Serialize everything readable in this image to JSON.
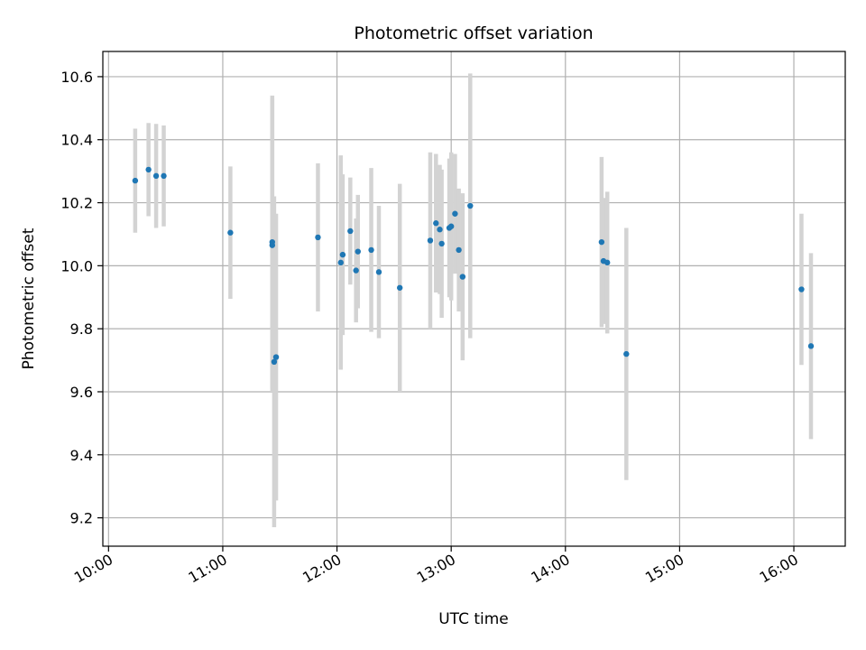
{
  "chart_data": {
    "type": "scatter",
    "title": "Photometric offset variation",
    "xlabel": "UTC time",
    "ylabel": "Photometric offset",
    "x_ticks": [
      "10:00",
      "11:00",
      "12:00",
      "13:00",
      "14:00",
      "15:00",
      "16:00"
    ],
    "y_ticks": [
      "9.2",
      "9.4",
      "9.6",
      "9.8",
      "10.0",
      "10.2",
      "10.4",
      "10.6"
    ],
    "xlim": [
      "09:57",
      "16:27"
    ],
    "ylim": [
      9.11,
      10.68
    ],
    "grid": true,
    "point_color": "#1f77b4",
    "errorbar_color": "#d3d3d3",
    "points": [
      {
        "x": "10:14",
        "y": 10.27,
        "yerr": 0.165
      },
      {
        "x": "10:21",
        "y": 10.305,
        "yerr": 0.148
      },
      {
        "x": "10:25",
        "y": 10.285,
        "yerr": 0.165
      },
      {
        "x": "10:29",
        "y": 10.285,
        "yerr": 0.16
      },
      {
        "x": "11:04",
        "y": 10.105,
        "yerr": 0.21
      },
      {
        "x": "11:26",
        "y": 10.075,
        "yerr": 0.465
      },
      {
        "x": "11:26",
        "y": 10.065,
        "yerr": 0.465
      },
      {
        "x": "11:27",
        "y": 9.695,
        "yerr": 0.525
      },
      {
        "x": "11:28",
        "y": 9.71,
        "yerr": 0.455
      },
      {
        "x": "11:50",
        "y": 10.09,
        "yerr": 0.235
      },
      {
        "x": "12:02",
        "y": 10.01,
        "yerr": 0.34
      },
      {
        "x": "12:03",
        "y": 10.035,
        "yerr": 0.255
      },
      {
        "x": "12:07",
        "y": 10.11,
        "yerr": 0.17
      },
      {
        "x": "12:10",
        "y": 9.985,
        "yerr": 0.165
      },
      {
        "x": "12:11",
        "y": 10.045,
        "yerr": 0.18
      },
      {
        "x": "12:18",
        "y": 10.05,
        "yerr": 0.26
      },
      {
        "x": "12:22",
        "y": 9.98,
        "yerr": 0.21
      },
      {
        "x": "12:33",
        "y": 9.93,
        "yerr": 0.33
      },
      {
        "x": "12:49",
        "y": 10.08,
        "yerr": 0.28
      },
      {
        "x": "12:52",
        "y": 10.135,
        "yerr": 0.22
      },
      {
        "x": "12:54",
        "y": 10.115,
        "yerr": 0.205
      },
      {
        "x": "12:55",
        "y": 10.07,
        "yerr": 0.235
      },
      {
        "x": "12:59",
        "y": 10.12,
        "yerr": 0.22
      },
      {
        "x": "13:00",
        "y": 10.125,
        "yerr": 0.235
      },
      {
        "x": "13:02",
        "y": 10.165,
        "yerr": 0.19
      },
      {
        "x": "13:04",
        "y": 10.05,
        "yerr": 0.195
      },
      {
        "x": "13:06",
        "y": 9.965,
        "yerr": 0.265
      },
      {
        "x": "13:10",
        "y": 10.19,
        "yerr": 0.42
      },
      {
        "x": "14:19",
        "y": 10.075,
        "yerr": 0.27
      },
      {
        "x": "14:20",
        "y": 10.015,
        "yerr": 0.2
      },
      {
        "x": "14:22",
        "y": 10.01,
        "yerr": 0.225
      },
      {
        "x": "14:32",
        "y": 9.72,
        "yerr": 0.4
      },
      {
        "x": "16:04",
        "y": 9.925,
        "yerr": 0.24
      },
      {
        "x": "16:09",
        "y": 9.745,
        "yerr": 0.295
      }
    ]
  }
}
